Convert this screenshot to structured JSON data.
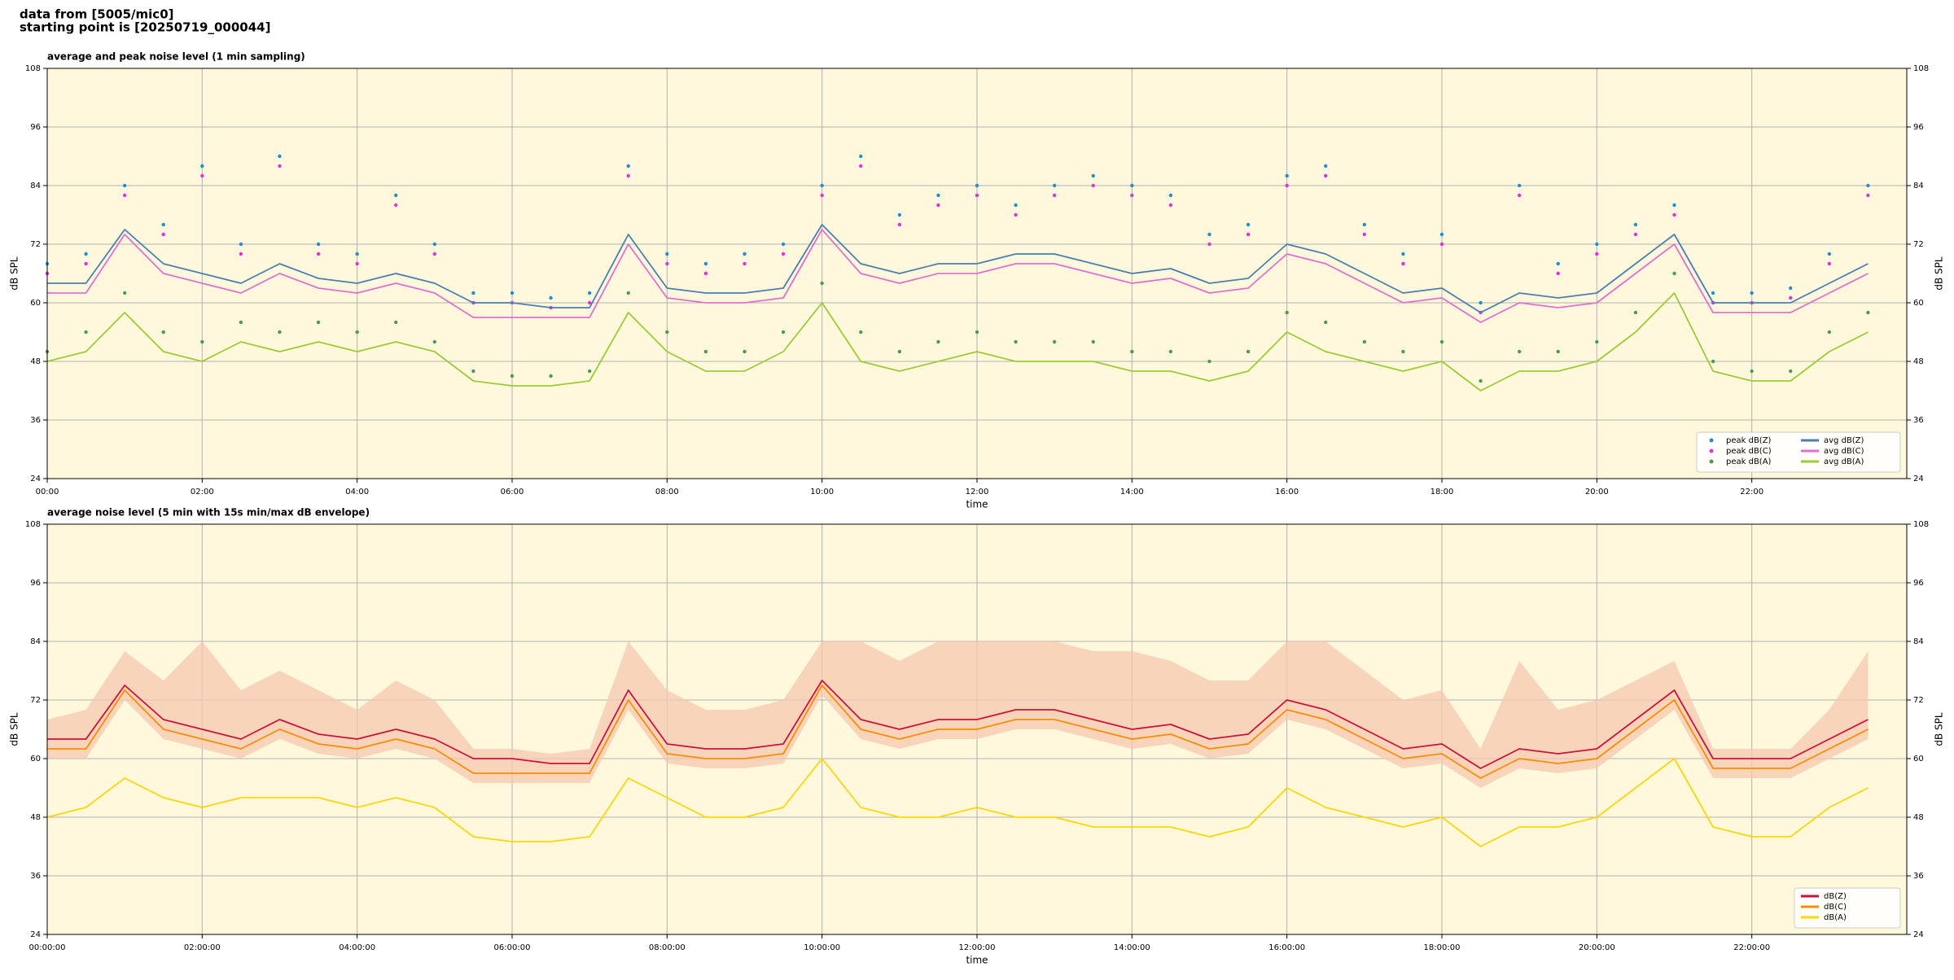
{
  "header": {
    "line1": "data from [5005/mic0]",
    "line2": "starting point is [20250719_000044]"
  },
  "chart_data": [
    {
      "type": "line",
      "title": "average and peak noise level (1 min sampling)",
      "x_label": "time",
      "y_label": "dB SPL",
      "background": "#fff8dc",
      "grid": true,
      "legend": "lower right",
      "xlim": [
        0,
        24
      ],
      "ylim": [
        24,
        108
      ],
      "yticks": [
        24,
        36,
        48,
        60,
        72,
        84,
        96,
        108
      ],
      "xticks": [
        {
          "value": 0,
          "label": "00:00"
        },
        {
          "value": 2,
          "label": "02:00"
        },
        {
          "value": 4,
          "label": "04:00"
        },
        {
          "value": 6,
          "label": "06:00"
        },
        {
          "value": 8,
          "label": "08:00"
        },
        {
          "value": 10,
          "label": "10:00"
        },
        {
          "value": 12,
          "label": "12:00"
        },
        {
          "value": 14,
          "label": "14:00"
        },
        {
          "value": 16,
          "label": "16:00"
        },
        {
          "value": 18,
          "label": "18:00"
        },
        {
          "value": 20,
          "label": "20:00"
        },
        {
          "value": 22,
          "label": "22:00"
        }
      ],
      "x": [
        0,
        0.5,
        1,
        1.5,
        2,
        2.5,
        3,
        3.5,
        4,
        4.5,
        5,
        5.5,
        6,
        6.5,
        7,
        7.5,
        8,
        8.5,
        9,
        9.5,
        10,
        10.5,
        11,
        11.5,
        12,
        12.5,
        13,
        13.5,
        14,
        14.5,
        15,
        15.5,
        16,
        16.5,
        17,
        17.5,
        18,
        18.5,
        19,
        19.5,
        20,
        20.5,
        21,
        21.5,
        22,
        22.5,
        23,
        23.5
      ],
      "series": [
        {
          "name": "peak dB(Z)",
          "color": "#1f8fd0",
          "style": "dots",
          "values": [
            68,
            70,
            84,
            76,
            88,
            72,
            90,
            72,
            70,
            82,
            72,
            62,
            62,
            61,
            62,
            88,
            70,
            68,
            70,
            72,
            84,
            90,
            78,
            82,
            84,
            80,
            84,
            86,
            84,
            82,
            74,
            76,
            86,
            88,
            76,
            70,
            74,
            60,
            84,
            68,
            72,
            76,
            80,
            62,
            62,
            63,
            70,
            84
          ]
        },
        {
          "name": "peak dB(C)",
          "color": "#e030e0",
          "style": "dots",
          "values": [
            66,
            68,
            82,
            74,
            86,
            70,
            88,
            70,
            68,
            80,
            70,
            60,
            60,
            59,
            60,
            86,
            68,
            66,
            68,
            70,
            82,
            88,
            76,
            80,
            82,
            78,
            82,
            84,
            82,
            80,
            72,
            74,
            84,
            86,
            74,
            68,
            72,
            58,
            82,
            66,
            70,
            74,
            78,
            60,
            60,
            61,
            68,
            82
          ]
        },
        {
          "name": "peak dB(A)",
          "color": "#4c9a50",
          "style": "dots",
          "values": [
            50,
            54,
            62,
            54,
            52,
            56,
            54,
            56,
            54,
            56,
            52,
            46,
            45,
            45,
            46,
            62,
            54,
            50,
            50,
            54,
            64,
            54,
            50,
            52,
            54,
            52,
            52,
            52,
            50,
            50,
            48,
            50,
            58,
            56,
            52,
            50,
            52,
            44,
            50,
            50,
            52,
            58,
            66,
            48,
            46,
            46,
            54,
            58
          ]
        },
        {
          "name": "avg dB(Z)",
          "color": "#4a7fb0",
          "style": "line",
          "values": [
            64,
            64,
            75,
            68,
            66,
            64,
            68,
            65,
            64,
            66,
            64,
            60,
            60,
            59,
            59,
            74,
            63,
            62,
            62,
            63,
            76,
            68,
            66,
            68,
            68,
            70,
            70,
            68,
            66,
            67,
            64,
            65,
            72,
            70,
            66,
            62,
            63,
            58,
            62,
            61,
            62,
            68,
            74,
            60,
            60,
            60,
            64,
            68
          ]
        },
        {
          "name": "avg dB(C)",
          "color": "#e070d0",
          "style": "line",
          "values": [
            62,
            62,
            74,
            66,
            64,
            62,
            66,
            63,
            62,
            64,
            62,
            57,
            57,
            57,
            57,
            72,
            61,
            60,
            60,
            61,
            75,
            66,
            64,
            66,
            66,
            68,
            68,
            66,
            64,
            65,
            62,
            63,
            70,
            68,
            64,
            60,
            61,
            56,
            60,
            59,
            60,
            66,
            72,
            58,
            58,
            58,
            62,
            66
          ]
        },
        {
          "name": "avg dB(A)",
          "color": "#9acd32",
          "style": "line",
          "values": [
            48,
            50,
            58,
            50,
            48,
            52,
            50,
            52,
            50,
            52,
            50,
            44,
            43,
            43,
            44,
            58,
            50,
            46,
            46,
            50,
            60,
            48,
            46,
            48,
            50,
            48,
            48,
            48,
            46,
            46,
            44,
            46,
            54,
            50,
            48,
            46,
            48,
            42,
            46,
            46,
            48,
            54,
            62,
            46,
            44,
            44,
            50,
            54
          ]
        }
      ]
    },
    {
      "type": "line",
      "title": "average noise level (5 min with 15s min/max dB envelope)",
      "x_label": "time",
      "y_label": "dB SPL",
      "background": "#fff8dc",
      "grid": true,
      "legend": "lower right",
      "xlim": [
        0,
        24
      ],
      "ylim": [
        24,
        108
      ],
      "yticks": [
        24,
        36,
        48,
        60,
        72,
        84,
        96,
        108
      ],
      "xticks": [
        {
          "value": 0,
          "label": "00:00:00"
        },
        {
          "value": 2,
          "label": "02:00:00"
        },
        {
          "value": 4,
          "label": "04:00:00"
        },
        {
          "value": 6,
          "label": "06:00:00"
        },
        {
          "value": 8,
          "label": "08:00:00"
        },
        {
          "value": 10,
          "label": "10:00:00"
        },
        {
          "value": 12,
          "label": "12:00:00"
        },
        {
          "value": 14,
          "label": "14:00:00"
        },
        {
          "value": 16,
          "label": "16:00:00"
        },
        {
          "value": 18,
          "label": "18:00:00"
        },
        {
          "value": 20,
          "label": "20:00:00"
        },
        {
          "value": 22,
          "label": "22:00:00"
        }
      ],
      "x": [
        0,
        0.5,
        1,
        1.5,
        2,
        2.5,
        3,
        3.5,
        4,
        4.5,
        5,
        5.5,
        6,
        6.5,
        7,
        7.5,
        8,
        8.5,
        9,
        9.5,
        10,
        10.5,
        11,
        11.5,
        12,
        12.5,
        13,
        13.5,
        14,
        14.5,
        15,
        15.5,
        16,
        16.5,
        17,
        17.5,
        18,
        18.5,
        19,
        19.5,
        20,
        20.5,
        21,
        21.5,
        22,
        22.5,
        23,
        23.5
      ],
      "band": {
        "color": "#f5c8b0",
        "high": [
          68,
          70,
          82,
          76,
          84,
          74,
          78,
          74,
          70,
          76,
          72,
          62,
          62,
          61,
          62,
          84,
          74,
          70,
          70,
          72,
          84,
          84,
          80,
          84,
          84,
          84,
          84,
          82,
          82,
          80,
          76,
          76,
          84,
          84,
          78,
          72,
          74,
          62,
          80,
          70,
          72,
          76,
          80,
          62,
          62,
          62,
          70,
          82
        ],
        "low": [
          60,
          60,
          72,
          64,
          62,
          60,
          64,
          61,
          60,
          62,
          60,
          55,
          55,
          55,
          55,
          70,
          59,
          58,
          58,
          59,
          73,
          64,
          62,
          64,
          64,
          66,
          66,
          64,
          62,
          63,
          60,
          61,
          68,
          66,
          62,
          58,
          59,
          54,
          58,
          57,
          58,
          64,
          70,
          56,
          56,
          56,
          60,
          64
        ]
      },
      "series": [
        {
          "name": "dB(Z)",
          "color": "#d0103a",
          "style": "line",
          "values": [
            64,
            64,
            75,
            68,
            66,
            64,
            68,
            65,
            64,
            66,
            64,
            60,
            60,
            59,
            59,
            74,
            63,
            62,
            62,
            63,
            76,
            68,
            66,
            68,
            68,
            70,
            70,
            68,
            66,
            67,
            64,
            65,
            72,
            70,
            66,
            62,
            63,
            58,
            62,
            61,
            62,
            68,
            74,
            60,
            60,
            60,
            64,
            68
          ]
        },
        {
          "name": "dB(C)",
          "color": "#ff8c00",
          "style": "line",
          "values": [
            62,
            62,
            74,
            66,
            64,
            62,
            66,
            63,
            62,
            64,
            62,
            57,
            57,
            57,
            57,
            72,
            61,
            60,
            60,
            61,
            75,
            66,
            64,
            66,
            66,
            68,
            68,
            66,
            64,
            65,
            62,
            63,
            70,
            68,
            64,
            60,
            61,
            56,
            60,
            59,
            60,
            66,
            72,
            58,
            58,
            58,
            62,
            66
          ]
        },
        {
          "name": "dB(A)",
          "color": "#ffd700",
          "style": "line",
          "values": [
            48,
            50,
            56,
            52,
            50,
            52,
            52,
            52,
            50,
            52,
            50,
            44,
            43,
            43,
            44,
            56,
            52,
            48,
            48,
            50,
            60,
            50,
            48,
            48,
            50,
            48,
            48,
            46,
            46,
            46,
            44,
            46,
            54,
            50,
            48,
            46,
            48,
            42,
            46,
            46,
            48,
            54,
            60,
            46,
            44,
            44,
            50,
            54
          ]
        }
      ]
    }
  ]
}
